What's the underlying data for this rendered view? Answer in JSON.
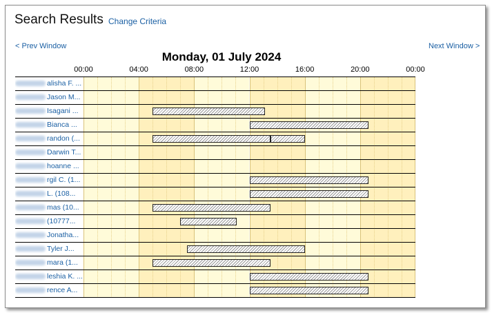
{
  "header": {
    "title": "Search Results",
    "change_criteria": "Change Criteria",
    "prev_window": "< Prev Window",
    "next_window": "Next Window >",
    "date": "Monday, 01 July 2024"
  },
  "timeline": {
    "ticks": [
      "00:00",
      "04:00",
      "08:00",
      "12:00",
      "16:00",
      "20:00",
      "00:00"
    ],
    "colors": {
      "light": "#fffbd9",
      "dark": "#fff0bd"
    }
  },
  "rows": [
    {
      "label": "alisha F. ...",
      "bars": []
    },
    {
      "label": "Jason M...",
      "bars": []
    },
    {
      "label": "Isagani ...",
      "bars": [
        [
          5.0,
          13.1
        ]
      ]
    },
    {
      "label": "Bianca ...",
      "bars": [
        [
          12.0,
          20.6
        ]
      ]
    },
    {
      "label": "randon (...",
      "bars": [
        [
          5.0,
          13.5
        ],
        [
          13.5,
          16.0
        ]
      ]
    },
    {
      "label": "Darwin T...",
      "bars": []
    },
    {
      "label": "hoanne ...",
      "bars": []
    },
    {
      "label": "rgil C. (1...",
      "bars": [
        [
          12.0,
          20.6
        ]
      ]
    },
    {
      "label": "L. (108...",
      "bars": [
        [
          12.0,
          20.6
        ]
      ]
    },
    {
      "label": "mas (10...",
      "bars": [
        [
          5.0,
          13.5
        ]
      ]
    },
    {
      "label": "(10777...",
      "bars": [
        [
          7.0,
          11.1
        ]
      ]
    },
    {
      "label": "Jonatha...",
      "bars": []
    },
    {
      "label": "Tyler J...",
      "bars": [
        [
          7.5,
          16.0
        ]
      ]
    },
    {
      "label": "mara (1...",
      "bars": [
        [
          5.0,
          13.5
        ]
      ]
    },
    {
      "label": "leshia K. ...",
      "bars": [
        [
          12.0,
          20.6
        ]
      ]
    },
    {
      "label": "rence A...",
      "bars": [
        [
          12.0,
          20.6
        ]
      ]
    }
  ]
}
